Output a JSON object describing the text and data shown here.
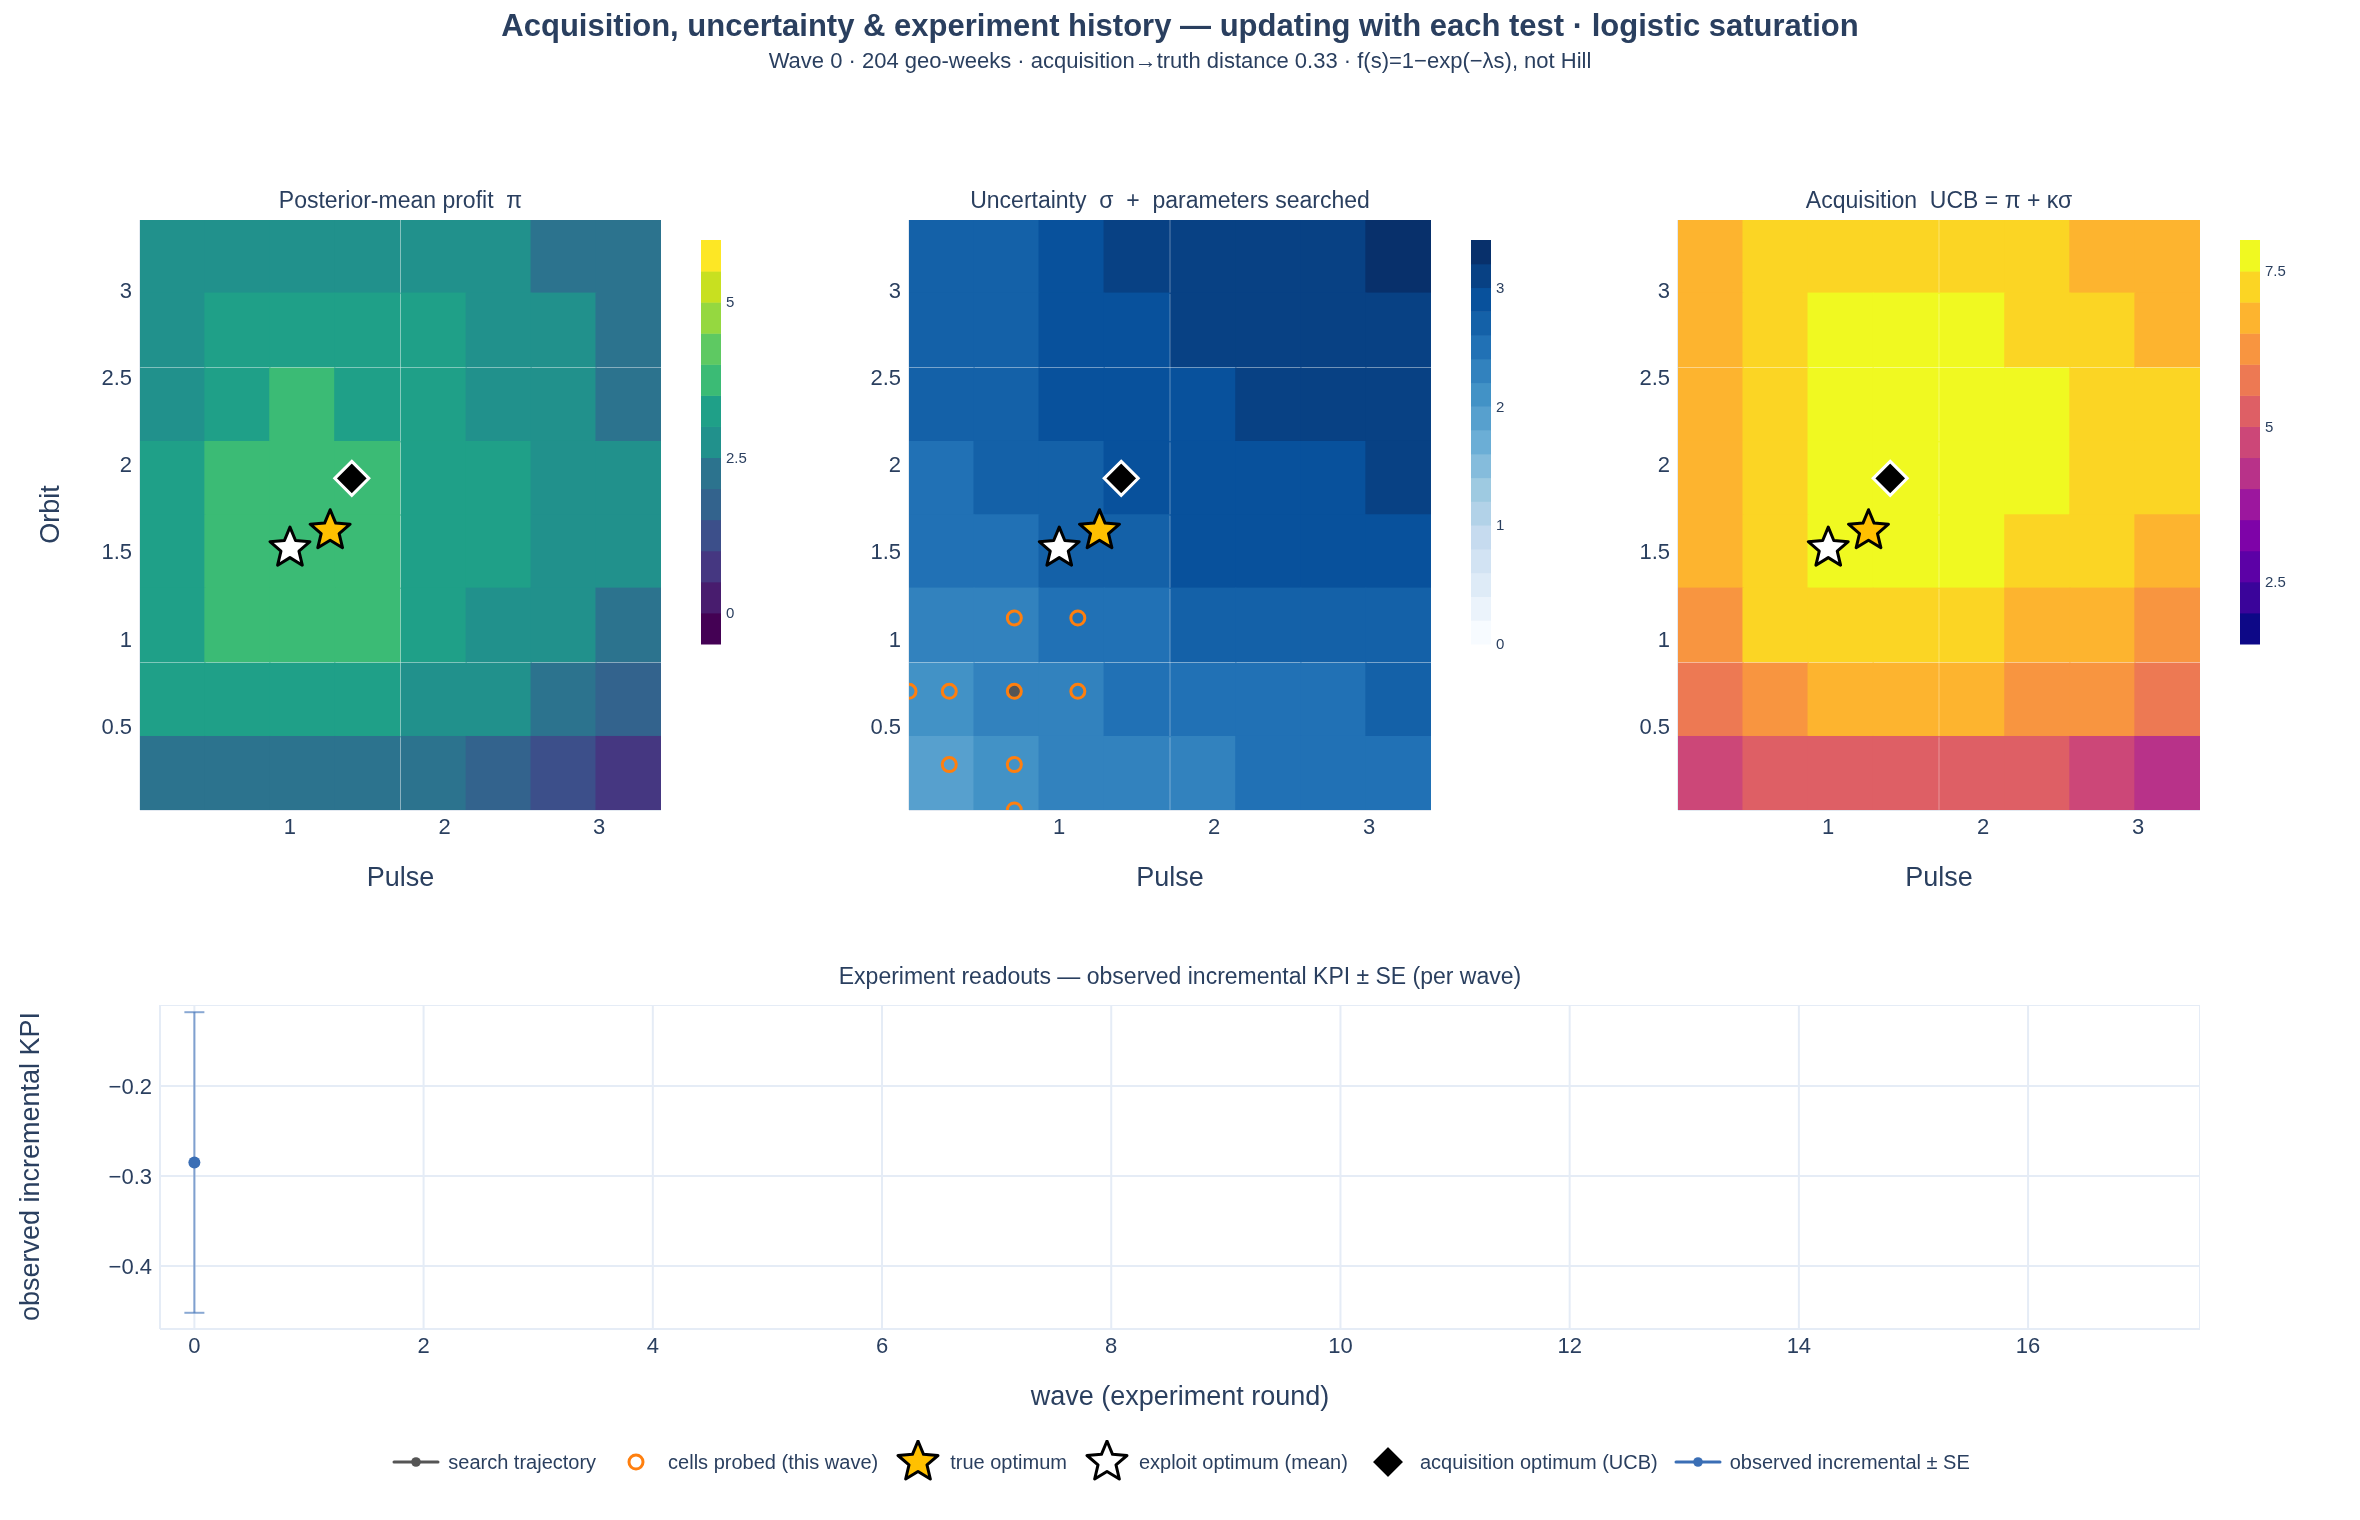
{
  "chart_data": [
    {
      "type": "other",
      "title": "Acquisition, uncertainty & experiment history — updating with each test · logistic saturation",
      "subtitle": "Wave 0 · 204 geo-weeks · acquisition→truth distance 0.33 · f(s)=1−exp(−λs), not Hill"
    },
    {
      "type": "heatmap",
      "title": "Posterior-mean profit  π",
      "xlabel": "Pulse",
      "ylabel": "Orbit",
      "x": [
        0.24,
        0.66,
        1.08,
        1.5,
        1.93,
        2.35,
        2.77,
        3.19
      ],
      "y": [
        3.19,
        2.77,
        2.34,
        1.92,
        1.5,
        1.08,
        0.65,
        0.23
      ],
      "xlim": [
        0.03,
        3.4
      ],
      "xticks": [
        1,
        2,
        3
      ],
      "ylim": [
        0.02,
        3.4
      ],
      "yticks": [
        0.5,
        1,
        1.5,
        2,
        2.5,
        3
      ],
      "clim": [
        -0.5,
        6
      ],
      "cticks": [
        0,
        2.5,
        5
      ],
      "colors": [
        "#440154",
        "#481c6e",
        "#453781",
        "#3c4f8a",
        "#33638d",
        "#2c738e",
        "#21918c",
        "#1fa088",
        "#3bbb75",
        "#5ec962",
        "#95d840",
        "#c8e020",
        "#fde725"
      ],
      "cells": [
        [
          2.75,
          2.75,
          2.75,
          2.75,
          2.75,
          2.75,
          2.25,
          2.25
        ],
        [
          2.75,
          3.25,
          3.25,
          3.25,
          3.25,
          2.75,
          2.75,
          2.25
        ],
        [
          2.75,
          3.25,
          3.75,
          3.25,
          3.25,
          2.75,
          2.75,
          2.25
        ],
        [
          3.25,
          3.75,
          3.75,
          3.75,
          3.25,
          3.25,
          2.75,
          2.75
        ],
        [
          3.25,
          3.75,
          3.75,
          3.75,
          3.25,
          3.25,
          2.75,
          2.75
        ],
        [
          3.25,
          3.75,
          3.75,
          3.75,
          3.25,
          2.75,
          2.75,
          2.25
        ],
        [
          3.25,
          3.25,
          3.25,
          3.25,
          2.75,
          2.75,
          2.25,
          1.75
        ],
        [
          2.25,
          2.25,
          2.25,
          2.25,
          2.25,
          1.75,
          1.25,
          0.75
        ]
      ],
      "series": [
        {
          "type": "scatter",
          "marker": "star",
          "color": "#ffc000",
          "x": [
            1.26
          ],
          "values": [
            1.62
          ]
        },
        {
          "type": "scatter",
          "marker": "star",
          "color": "#ffffff",
          "x": [
            1.0
          ],
          "values": [
            1.52
          ]
        },
        {
          "type": "scatter",
          "marker": "diamond",
          "color": "#000000",
          "x": [
            1.4
          ],
          "values": [
            1.92
          ]
        }
      ]
    },
    {
      "type": "heatmap",
      "title": "Uncertainty  σ  +  parameters searched",
      "xlabel": "Pulse",
      "x": [
        0.24,
        0.66,
        1.08,
        1.5,
        1.93,
        2.35,
        2.77,
        3.19
      ],
      "y": [
        3.19,
        2.77,
        2.34,
        1.92,
        1.5,
        1.08,
        0.65,
        0.23
      ],
      "xlim": [
        0.03,
        3.4
      ],
      "xticks": [
        1,
        2,
        3
      ],
      "ylim": [
        0.02,
        3.4
      ],
      "yticks": [
        0.5,
        1,
        1.5,
        2,
        2.5,
        3
      ],
      "clim": [
        0,
        3.4
      ],
      "cticks": [
        0,
        1,
        2,
        3
      ],
      "colors": [
        "#f7fbff",
        "#ebf3fb",
        "#deebf7",
        "#d2e3f3",
        "#c6dbef",
        "#b2d2e8",
        "#9ecae1",
        "#85bcdc",
        "#6baed6",
        "#57a0ce",
        "#4292c6",
        "#3282be",
        "#2171b5",
        "#1461a8",
        "#08519c",
        "#084184",
        "#08306b"
      ],
      "cells": [
        [
          2.7,
          2.7,
          2.9,
          3.1,
          3.1,
          3.1,
          3.1,
          3.3
        ],
        [
          2.7,
          2.7,
          2.9,
          2.9,
          3.1,
          3.1,
          3.1,
          3.1
        ],
        [
          2.7,
          2.7,
          2.9,
          2.9,
          2.9,
          3.1,
          3.1,
          3.1
        ],
        [
          2.5,
          2.7,
          2.7,
          2.9,
          2.9,
          2.9,
          2.9,
          3.1
        ],
        [
          2.5,
          2.5,
          2.7,
          2.7,
          2.9,
          2.9,
          2.9,
          2.9
        ],
        [
          2.3,
          2.3,
          2.5,
          2.5,
          2.7,
          2.7,
          2.7,
          2.7
        ],
        [
          2.1,
          2.3,
          2.3,
          2.5,
          2.5,
          2.5,
          2.5,
          2.7
        ],
        [
          1.9,
          2.1,
          2.3,
          2.3,
          2.3,
          2.5,
          2.5,
          2.5
        ]
      ],
      "legend": "bottom",
      "series": [
        {
          "name": "search trajectory",
          "type": "line",
          "marker": "circle",
          "color": "#555555",
          "x": [
            0.71
          ],
          "values": [
            0.7
          ]
        },
        {
          "name": "cells probed (this wave)",
          "type": "scatter",
          "marker": "circle",
          "color": "#ff7f0e",
          "x": [
            0.03,
            0.29,
            0.71,
            1.12,
            0.71,
            1.12,
            0.29,
            0.71,
            0.71
          ],
          "values": [
            0.7,
            0.7,
            0.7,
            0.7,
            1.12,
            1.12,
            0.28,
            0.28,
            0.02
          ]
        },
        {
          "name": "true optimum",
          "type": "scatter",
          "marker": "star",
          "color": "#ffc000",
          "x": [
            1.26
          ],
          "values": [
            1.62
          ]
        },
        {
          "name": "exploit optimum (mean)",
          "type": "scatter",
          "marker": "star",
          "color": "#ffffff",
          "x": [
            1.0
          ],
          "values": [
            1.52
          ]
        },
        {
          "name": "acquisition optimum (UCB)",
          "type": "scatter",
          "marker": "diamond",
          "color": "#000000",
          "x": [
            1.4
          ],
          "values": [
            1.92
          ]
        }
      ]
    },
    {
      "type": "heatmap",
      "title": "Acquisition  UCB = π + κσ",
      "xlabel": "Pulse",
      "x": [
        0.24,
        0.66,
        1.08,
        1.5,
        1.93,
        2.35,
        2.77,
        3.19
      ],
      "y": [
        3.19,
        2.77,
        2.34,
        1.92,
        1.5,
        1.08,
        0.65,
        0.23
      ],
      "xlim": [
        0.03,
        3.4
      ],
      "xticks": [
        1,
        2,
        3
      ],
      "ylim": [
        0.02,
        3.4
      ],
      "yticks": [
        0.5,
        1,
        1.5,
        2,
        2.5,
        3
      ],
      "clim": [
        1.5,
        8
      ],
      "cticks": [
        2.5,
        5,
        7.5
      ],
      "colors": [
        "#0d0887",
        "#3a049a",
        "#5c01a6",
        "#7e03a8",
        "#9c179e",
        "#b83289",
        "#cc4778",
        "#de5f65",
        "#ed7953",
        "#f89540",
        "#fdb42f",
        "#fbd524",
        "#f0f921"
      ],
      "cells": [
        [
          6.75,
          7.25,
          7.25,
          7.25,
          7.25,
          7.25,
          6.75,
          6.75
        ],
        [
          6.75,
          7.25,
          7.75,
          7.75,
          7.75,
          7.25,
          7.25,
          6.75
        ],
        [
          6.75,
          7.25,
          7.75,
          7.75,
          7.75,
          7.75,
          7.25,
          7.25
        ],
        [
          6.75,
          7.25,
          7.75,
          7.75,
          7.75,
          7.75,
          7.25,
          7.25
        ],
        [
          6.75,
          7.25,
          7.75,
          7.75,
          7.75,
          7.25,
          7.25,
          6.75
        ],
        [
          6.25,
          7.25,
          7.25,
          7.25,
          7.25,
          6.75,
          6.75,
          6.25
        ],
        [
          5.75,
          6.25,
          6.75,
          6.75,
          6.75,
          6.25,
          6.25,
          5.75
        ],
        [
          4.75,
          5.25,
          5.25,
          5.25,
          5.25,
          5.25,
          4.75,
          4.25
        ]
      ],
      "series": [
        {
          "type": "scatter",
          "marker": "star",
          "color": "#ffc000",
          "x": [
            1.26
          ],
          "values": [
            1.62
          ]
        },
        {
          "type": "scatter",
          "marker": "star",
          "color": "#ffffff",
          "x": [
            1.0
          ],
          "values": [
            1.52
          ]
        },
        {
          "type": "scatter",
          "marker": "diamond",
          "color": "#000000",
          "x": [
            1.4
          ],
          "values": [
            1.92
          ]
        }
      ]
    },
    {
      "type": "scatter",
      "title": "Experiment readouts — observed incremental KPI ± SE (per wave)",
      "xlabel": "wave (experiment round)",
      "ylabel": "observed incremental KPI",
      "xlim": [
        -0.3,
        17.5
      ],
      "xticks": [
        0,
        2,
        4,
        6,
        8,
        10,
        12,
        14,
        16
      ],
      "ylim": [
        -0.47,
        -0.11
      ],
      "yticks": [
        {
          "value": -0.4,
          "label": "−0.4"
        },
        {
          "value": -0.3,
          "label": "−0.3"
        },
        {
          "value": -0.2,
          "label": "−0.2"
        }
      ],
      "grid": true,
      "legend": "bottom",
      "series": [
        {
          "name": "observed incremental ± SE",
          "type": "line",
          "marker": "circle",
          "color": "#3a6eb5",
          "x": [
            0
          ],
          "values": [
            -0.285
          ],
          "errors": [
            0.167
          ]
        }
      ]
    }
  ]
}
